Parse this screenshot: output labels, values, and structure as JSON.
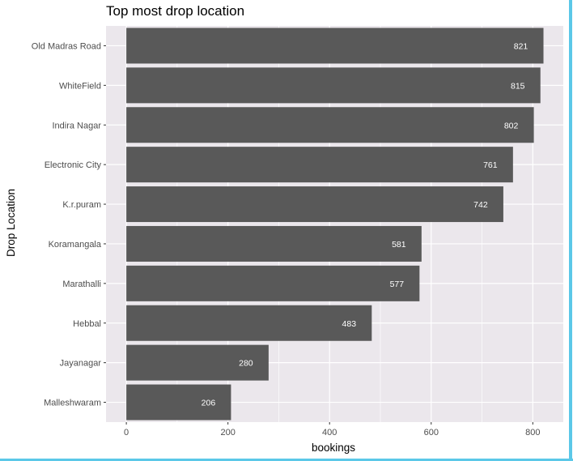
{
  "chart_data": {
    "type": "bar",
    "orientation": "horizontal",
    "title": "Top most drop location",
    "xlabel": "bookings",
    "ylabel": "Drop Location",
    "categories": [
      "Old Madras Road",
      "WhiteField",
      "Indira Nagar",
      "Electronic City",
      "K.r.puram",
      "Koramangala",
      "Marathalli",
      "Hebbal",
      "Jayanagar",
      "Malleshwaram"
    ],
    "values": [
      821,
      815,
      802,
      761,
      742,
      581,
      577,
      483,
      280,
      206
    ],
    "value_labels": [
      "821",
      "815",
      "802",
      "761",
      "742",
      "581",
      "577",
      "483",
      "280",
      "206"
    ],
    "xlim": [
      -40,
      860
    ],
    "xticks": [
      0,
      200,
      400,
      600,
      800
    ],
    "xtick_labels": [
      "0",
      "200",
      "400",
      "600",
      "800"
    ],
    "grid": true,
    "legend": "none",
    "colors": {
      "bar": "#595959",
      "panel_background": "#ebe7ec",
      "grid": "#ffffff",
      "value_label": "#ffffff",
      "frame": "#5bc8e8"
    }
  }
}
